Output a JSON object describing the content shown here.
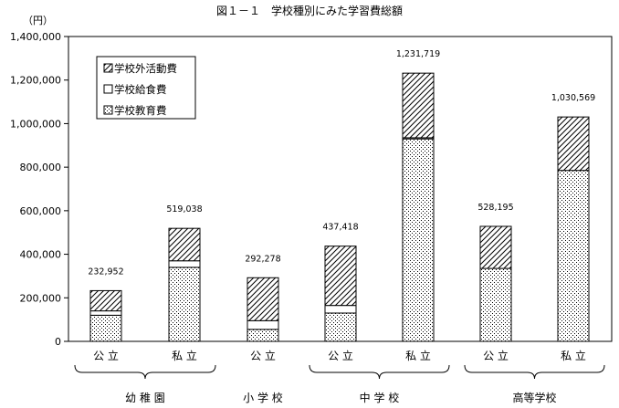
{
  "chart_data": {
    "type": "bar",
    "stacked": true,
    "title": "図１－１　学校種別にみた学習費総額",
    "unit_label": "（円）",
    "categories": [
      "公 立",
      "私 立",
      "公 立",
      "公 立",
      "私 立",
      "公 立",
      "私 立"
    ],
    "groups": [
      {
        "label": "幼 稚 園",
        "members": [
          0,
          1
        ],
        "brace": true
      },
      {
        "label": "小 学 校",
        "members": [
          2
        ],
        "brace": false
      },
      {
        "label": "中 学 校",
        "members": [
          3,
          4
        ],
        "brace": true
      },
      {
        "label": "高等学校",
        "members": [
          5,
          6
        ],
        "brace": true
      }
    ],
    "series": [
      {
        "name": "学校教育費",
        "pattern": "dots",
        "values": [
          120000,
          340000,
          55000,
          130000,
          930000,
          335000,
          785000
        ]
      },
      {
        "name": "学校給食費",
        "pattern": "blank",
        "values": [
          20000,
          30000,
          40000,
          35000,
          5000,
          0,
          0
        ]
      },
      {
        "name": "学校外活動費",
        "pattern": "hatch",
        "values": [
          92952,
          149038,
          197278,
          272418,
          296719,
          193195,
          245569
        ]
      }
    ],
    "totals": [
      232952,
      519038,
      292278,
      437418,
      1231719,
      528195,
      1030569
    ],
    "total_labels": [
      "232,952",
      "519,038",
      "292,278",
      "437,418",
      "1,231,719",
      "528,195",
      "1,030,569"
    ],
    "yticks": [
      "0",
      "200,000",
      "400,000",
      "600,000",
      "800,000",
      "1,000,000",
      "1,200,000",
      "1,400,000"
    ],
    "ylim": [
      0,
      1400000
    ],
    "legend_position": "top-left",
    "grid": false,
    "colors": {
      "line": "#000000",
      "background": "#ffffff"
    }
  }
}
